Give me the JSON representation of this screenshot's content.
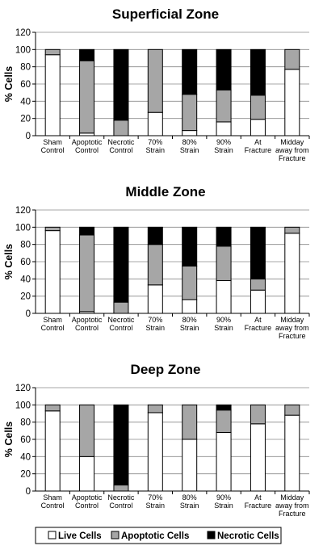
{
  "chart_data": [
    {
      "type": "bar",
      "stacked": true,
      "title": "Superficial Zone",
      "ylabel": "% Cells",
      "ylim": [
        0,
        120
      ],
      "yticks": [
        "0",
        "20",
        "40",
        "60",
        "80",
        "100",
        "120"
      ],
      "categories": [
        [
          "Sham",
          "Control"
        ],
        [
          "Apoptotic",
          "Control"
        ],
        [
          "Necrotic",
          "Control"
        ],
        [
          "70%",
          "Strain"
        ],
        [
          "80%",
          "Strain"
        ],
        [
          "90%",
          "Strain"
        ],
        [
          "At",
          "Fracture"
        ],
        [
          "Midday",
          "away from",
          "Fracture"
        ]
      ],
      "series": [
        {
          "name": "Live Cells",
          "values": [
            94,
            3,
            0,
            27,
            6,
            16,
            19,
            77
          ]
        },
        {
          "name": "Apoptotic Cells",
          "values": [
            6,
            84,
            18,
            73,
            42,
            37,
            28,
            23
          ]
        },
        {
          "name": "Necrotic Cells",
          "values": [
            0,
            13,
            82,
            0,
            52,
            47,
            53,
            0
          ]
        }
      ]
    },
    {
      "type": "bar",
      "stacked": true,
      "title": "Middle Zone",
      "ylabel": "% Cells",
      "ylim": [
        0,
        120
      ],
      "yticks": [
        "0",
        "20",
        "40",
        "60",
        "80",
        "100",
        "120"
      ],
      "categories": [
        [
          "Sham",
          "Control"
        ],
        [
          "Apoptotic",
          "Control"
        ],
        [
          "Necrotic",
          "Control"
        ],
        [
          "70%",
          "Strain"
        ],
        [
          "80%",
          "Strain"
        ],
        [
          "90%",
          "Strain"
        ],
        [
          "At",
          "Fracture"
        ],
        [
          "Midday",
          "away from",
          "Fracture"
        ]
      ],
      "series": [
        {
          "name": "Live Cells",
          "values": [
            96,
            2,
            0,
            33,
            16,
            38,
            27,
            93
          ]
        },
        {
          "name": "Apoptotic Cells",
          "values": [
            4,
            89,
            13,
            47,
            39,
            40,
            13,
            7
          ]
        },
        {
          "name": "Necrotic Cells",
          "values": [
            0,
            9,
            87,
            20,
            45,
            22,
            60,
            0
          ]
        }
      ]
    },
    {
      "type": "bar",
      "stacked": true,
      "title": "Deep Zone",
      "ylabel": "% Cells",
      "ylim": [
        0,
        120
      ],
      "yticks": [
        "0",
        "20",
        "40",
        "60",
        "80",
        "100",
        "120"
      ],
      "categories": [
        [
          "Sham",
          "Control"
        ],
        [
          "Apoptotic",
          "Control"
        ],
        [
          "Necrotic",
          "Control"
        ],
        [
          "70%",
          "Strain"
        ],
        [
          "80%",
          "Strain"
        ],
        [
          "90%",
          "Strain"
        ],
        [
          "At",
          "Fracture"
        ],
        [
          "Midday",
          "away from",
          "Fracture"
        ]
      ],
      "series": [
        {
          "name": "Live Cells",
          "values": [
            93,
            40,
            0,
            91,
            60,
            68,
            78,
            88
          ]
        },
        {
          "name": "Apoptotic Cells",
          "values": [
            7,
            60,
            7,
            9,
            40,
            26,
            22,
            12
          ]
        },
        {
          "name": "Necrotic Cells",
          "values": [
            0,
            0,
            93,
            0,
            0,
            6,
            0,
            0
          ]
        }
      ]
    }
  ],
  "legend": {
    "position": "bottom",
    "items": [
      {
        "label": "Live Cells",
        "color": "#ffffff"
      },
      {
        "label": "Apoptotic Cells",
        "color": "#a6a6a6"
      },
      {
        "label": "Necrotic Cells",
        "color": "#000000"
      }
    ]
  }
}
